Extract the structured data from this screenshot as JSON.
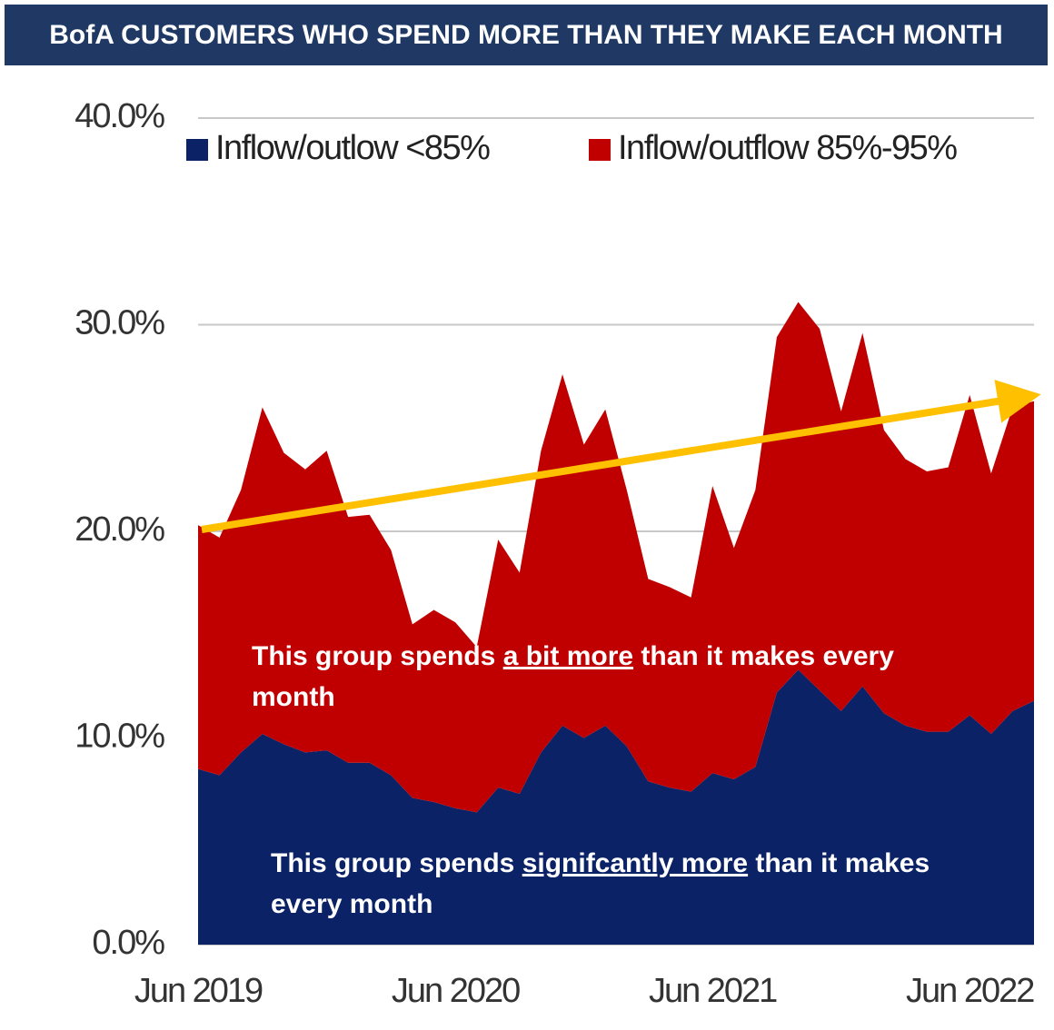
{
  "chart_data": {
    "type": "stacked_area",
    "title": "BofA CUSTOMERS WHO SPEND MORE THAN THEY MAKE EACH MONTH",
    "categories": [
      "Jun 2019",
      null,
      null,
      null,
      null,
      null,
      null,
      null,
      null,
      null,
      null,
      null,
      "Jun 2020",
      null,
      null,
      null,
      null,
      null,
      null,
      null,
      null,
      null,
      null,
      null,
      "Jun 2021",
      null,
      null,
      null,
      null,
      null,
      null,
      null,
      null,
      null,
      null,
      null,
      "Jun 2022",
      null,
      null,
      null
    ],
    "series": [
      {
        "name": "Inflow/outlow <85%",
        "color": "#0b2266",
        "values": [
          8.5,
          8.2,
          9.3,
          10.2,
          9.7,
          9.3,
          9.4,
          8.8,
          8.8,
          8.2,
          7.1,
          6.9,
          6.6,
          6.4,
          7.6,
          7.3,
          9.3,
          10.6,
          10.0,
          10.6,
          9.6,
          7.9,
          7.6,
          7.4,
          8.3,
          8.0,
          8.6,
          12.2,
          13.3,
          12.3,
          11.3,
          12.5,
          11.2,
          10.6,
          10.3,
          10.3,
          11.1,
          10.2,
          11.3,
          11.8
        ]
      },
      {
        "name": "Inflow/outflow 85%-95%",
        "color": "#c00000",
        "values": [
          11.8,
          11.5,
          12.7,
          15.8,
          14.1,
          13.7,
          14.5,
          11.9,
          12.0,
          10.9,
          8.4,
          9.3,
          9.0,
          8.0,
          12.0,
          10.7,
          14.6,
          17.0,
          14.2,
          15.3,
          12.4,
          9.8,
          9.7,
          9.4,
          13.9,
          11.2,
          13.4,
          17.2,
          17.8,
          17.5,
          14.5,
          17.1,
          13.7,
          12.9,
          12.6,
          12.8,
          15.5,
          12.6,
          14.7,
          14.5
        ]
      }
    ],
    "ylim": [
      0,
      40
    ],
    "yticks": [
      {
        "value": 0,
        "label": "0.0%"
      },
      {
        "value": 10,
        "label": "10.0%"
      },
      {
        "value": 20,
        "label": "20.0%"
      },
      {
        "value": 30,
        "label": "30.0%"
      },
      {
        "value": 40,
        "label": "40.0%"
      }
    ],
    "grid": true,
    "legend": "top",
    "annotations": [
      [
        "This group spends ",
        "a bit more",
        " than it makes every month"
      ],
      [
        "This group spends ",
        "signifcantly more",
        " than it makes every month"
      ]
    ]
  }
}
